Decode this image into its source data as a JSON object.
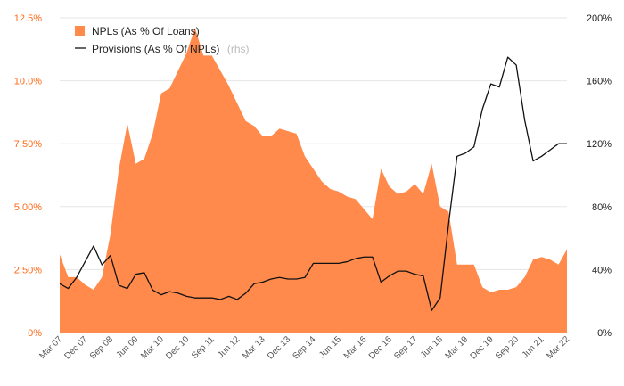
{
  "chart_data": {
    "type": "area+line",
    "legend": [
      {
        "label": "NPLs (As % Of Loans)",
        "suffix": "",
        "color": "#ff8a4c",
        "kind": "area"
      },
      {
        "label": "Provisions (As % Of NPLs)",
        "suffix": "(rhs)",
        "color": "#111111",
        "kind": "line"
      }
    ],
    "left_axis": {
      "ticks": [
        "0%",
        "2.50%",
        "5.00%",
        "7.50%",
        "10.0%",
        "12.5%"
      ],
      "range": [
        0,
        12.5
      ],
      "color": "#ff6a1a"
    },
    "right_axis": {
      "ticks": [
        "0%",
        "40%",
        "80%",
        "120%",
        "160%",
        "200%"
      ],
      "range": [
        0,
        200
      ],
      "color": "#111111"
    },
    "x_tick_labels": [
      "Mar 07",
      "Dec 07",
      "Sep 08",
      "Jun 09",
      "Mar 10",
      "Dec 10",
      "Sep 11",
      "Jun 12",
      "Mar 13",
      "Dec 13",
      "Sep 14",
      "Jun 15",
      "Mar 16",
      "Dec 16",
      "Sep 17",
      "Jun 18",
      "Mar 19",
      "Dec 19",
      "Sep 20",
      "Jun 21",
      "Mar 22"
    ],
    "series": [
      {
        "name": "NPLs (As % Of Loans)",
        "axis": "left",
        "values": [
          3.1,
          2.2,
          2.2,
          1.9,
          1.7,
          2.2,
          3.9,
          6.5,
          8.3,
          6.7,
          6.9,
          7.9,
          9.5,
          9.7,
          10.4,
          11.1,
          12.1,
          11.0,
          11.0,
          10.4,
          9.8,
          9.1,
          8.4,
          8.2,
          7.8,
          7.8,
          8.1,
          8.0,
          7.9,
          7.0,
          6.5,
          6.0,
          5.7,
          5.6,
          5.4,
          5.3,
          4.9,
          4.5,
          6.5,
          5.8,
          5.5,
          5.6,
          5.9,
          5.5,
          6.7,
          5.0,
          4.8,
          2.7,
          2.7,
          2.7,
          1.8,
          1.6,
          1.7,
          1.7,
          1.8,
          2.2,
          2.9,
          3.0,
          2.9,
          2.7,
          3.3
        ]
      },
      {
        "name": "Provisions (As % Of NPLs)",
        "axis": "right",
        "values": [
          31,
          28,
          35,
          45,
          55,
          43,
          49,
          30,
          28,
          37,
          38,
          27,
          24,
          26,
          25,
          23,
          22,
          22,
          22,
          21,
          23,
          21,
          25,
          31,
          32,
          34,
          35,
          34,
          34,
          35,
          44,
          44,
          44,
          44,
          45,
          47,
          48,
          48,
          32,
          36,
          39,
          39,
          37,
          36,
          14,
          22,
          69,
          112,
          114,
          118,
          142,
          158,
          156,
          175,
          170,
          135,
          109,
          112,
          116,
          120,
          120
        ]
      }
    ]
  }
}
